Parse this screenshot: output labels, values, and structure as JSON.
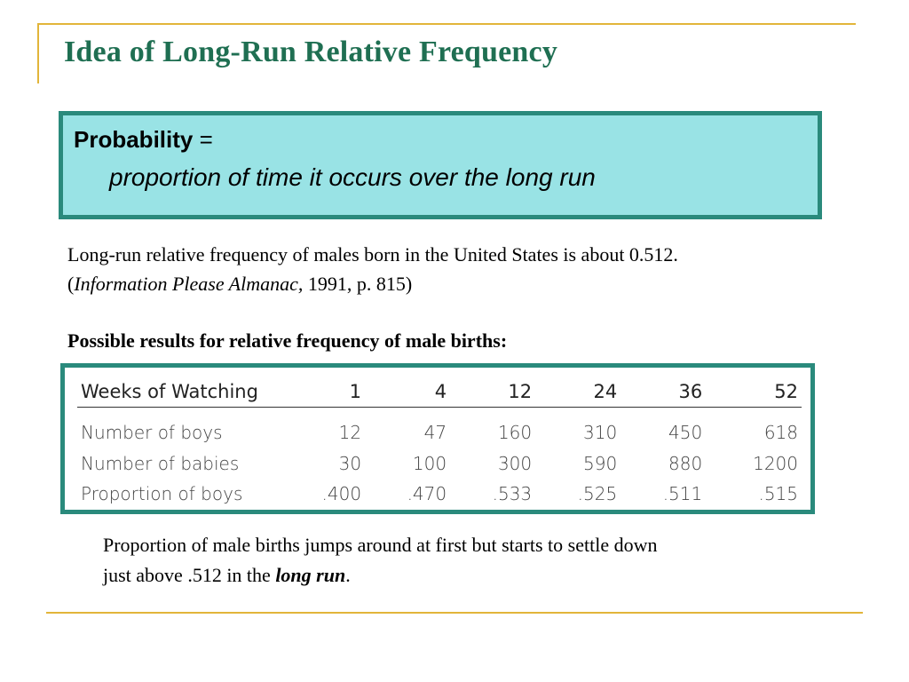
{
  "slide": {
    "title": "Idea of Long-Run Relative Frequency",
    "definition": {
      "term": "Probability",
      "equals": "=",
      "text": "proportion of time it occurs over the long run"
    },
    "paragraph": {
      "text_before": "Long-run relative frequency of males born in the United States is about 0.512. (",
      "source": "Information Please Almanac,",
      "text_after": " 1991, p. 815)"
    },
    "subheading": "Possible results for relative frequency of male births:",
    "table": {
      "header": [
        "Weeks of Watching",
        "1",
        "4",
        "12",
        "24",
        "36",
        "52"
      ],
      "rows": [
        [
          "Number of boys",
          "12",
          "47",
          "160",
          "310",
          "450",
          "618"
        ],
        [
          "Number of babies",
          "30",
          "100",
          "300",
          "590",
          "880",
          "1200"
        ],
        [
          "Proportion of boys",
          ".400",
          ".470",
          ".533",
          ".525",
          ".511",
          ".515"
        ]
      ]
    },
    "conclusion": {
      "text_before": "Proportion of male births jumps around at first but starts to settle down just above .512 in the ",
      "emphasis": "long run",
      "text_after": "."
    }
  },
  "colors": {
    "title": "#1f6f52",
    "accent_line": "#e2b53a",
    "box_fill": "#99e3e5",
    "box_border": "#2a8a7c"
  }
}
